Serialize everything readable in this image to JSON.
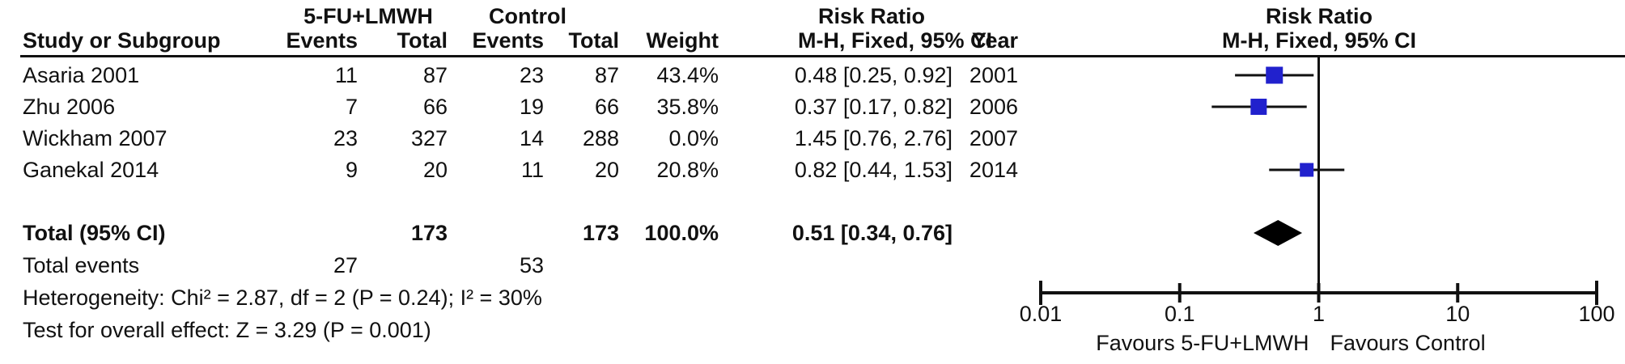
{
  "table": {
    "group_headers": {
      "treatment": "5-FU+LMWH",
      "control": "Control",
      "risk_ratio": "Risk Ratio"
    },
    "col_headers": {
      "study": "Study or Subgroup",
      "events1": "Events",
      "total1": "Total",
      "events2": "Events",
      "total2": "Total",
      "weight": "Weight",
      "ci": "M-H, Fixed, 95% CI",
      "year": "Year"
    },
    "rows": [
      {
        "study": "Asaria 2001",
        "events1": "11",
        "total1": "87",
        "events2": "23",
        "total2": "87",
        "weight": "43.4%",
        "ci": "0.48 [0.25, 0.92]",
        "year": "2001"
      },
      {
        "study": "Zhu 2006",
        "events1": "7",
        "total1": "66",
        "events2": "19",
        "total2": "66",
        "weight": "35.8%",
        "ci": "0.37 [0.17, 0.82]",
        "year": "2006"
      },
      {
        "study": "Wickham 2007",
        "events1": "23",
        "total1": "327",
        "events2": "14",
        "total2": "288",
        "weight": "0.0%",
        "ci": "1.45 [0.76, 2.76]",
        "year": "2007"
      },
      {
        "study": "Ganekal 2014",
        "events1": "9",
        "total1": "20",
        "events2": "11",
        "total2": "20",
        "weight": "20.8%",
        "ci": "0.82 [0.44, 1.53]",
        "year": "2014"
      }
    ],
    "total_row": {
      "label": "Total (95% CI)",
      "total1": "173",
      "total2": "173",
      "weight": "100.0%",
      "ci": "0.51 [0.34, 0.76]"
    },
    "total_events": {
      "label": "Total events",
      "events1": "27",
      "events2": "53"
    },
    "heterogeneity": "Heterogeneity: Chi² = 2.87, df = 2 (P = 0.24); I² = 30%",
    "overall_effect": "Test for overall effect: Z = 3.29 (P = 0.001)"
  },
  "plot_header": {
    "title": "Risk Ratio",
    "subtitle": "M-H, Fixed, 95% CI"
  },
  "chart_data": {
    "type": "scatter",
    "subtype": "forest-plot",
    "title": "Risk Ratio",
    "subtitle": "M-H, Fixed, 95% CI",
    "effect_measure": "Risk Ratio (M-H, Fixed, 95% CI)",
    "x_axis": {
      "scale": "log10",
      "range": [
        0.01,
        100
      ],
      "ticks": [
        0.01,
        0.1,
        1,
        10,
        100
      ],
      "tick_labels": [
        "0.01",
        "0.1",
        "1",
        "10",
        "100"
      ],
      "null_line": 1
    },
    "studies": [
      {
        "name": "Asaria 2001",
        "rr": 0.48,
        "ci_low": 0.25,
        "ci_high": 0.92,
        "weight_pct": 43.4,
        "year": 2001
      },
      {
        "name": "Zhu 2006",
        "rr": 0.37,
        "ci_low": 0.17,
        "ci_high": 0.82,
        "weight_pct": 35.8,
        "year": 2006
      },
      {
        "name": "Wickham 2007",
        "rr": 1.45,
        "ci_low": 0.76,
        "ci_high": 2.76,
        "weight_pct": 0.0,
        "year": 2007
      },
      {
        "name": "Ganekal 2014",
        "rr": 0.82,
        "ci_low": 0.44,
        "ci_high": 1.53,
        "weight_pct": 20.8,
        "year": 2014
      }
    ],
    "pooled": {
      "label": "Total (95% CI)",
      "rr": 0.51,
      "ci_low": 0.34,
      "ci_high": 0.76,
      "weight_pct": 100.0
    },
    "footer_left": "Favours 5-FU+LMWH",
    "footer_right": "Favours Control",
    "colors": {
      "marker": "#2121cd",
      "diamond": "#000000",
      "line": "#111111"
    }
  }
}
